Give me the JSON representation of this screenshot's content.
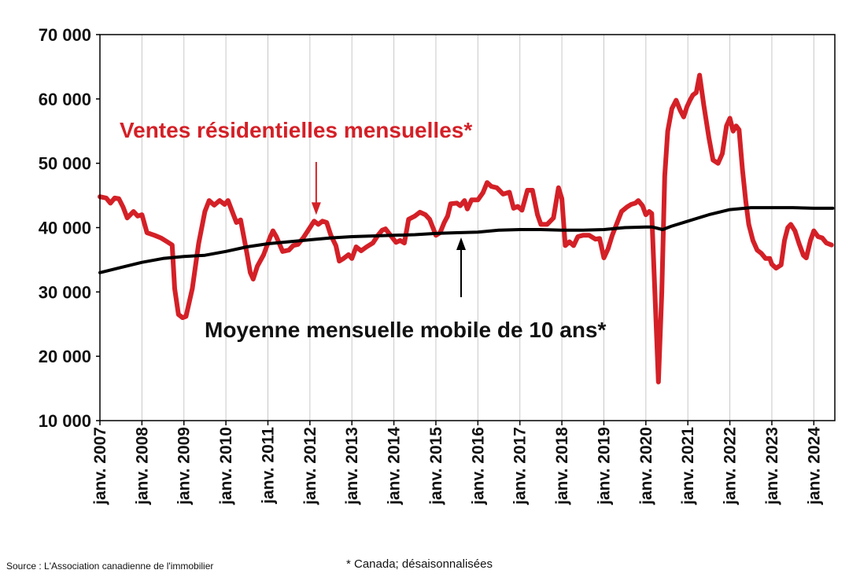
{
  "source": "Source : L'Association canadienne de l'immobilier",
  "footnote": "* Canada; désaisonnalisées",
  "annotations": [
    {
      "id": "red",
      "text": "Ventes résidentielles mensuelles*",
      "color": "#d42027",
      "at": [
        2012.15,
        41000
      ]
    },
    {
      "id": "black",
      "text": "Moyenne mensuelle mobile de 10 ans*",
      "color": "#000000",
      "at": [
        2015.6,
        39200
      ]
    }
  ],
  "chart_data": {
    "type": "line",
    "title": "",
    "xlabel": "",
    "ylabel": "",
    "xlim": [
      2007.0,
      2024.5
    ],
    "ylim": [
      10000,
      70000
    ],
    "grid": "vertical",
    "yticks": [
      10000,
      20000,
      30000,
      40000,
      50000,
      60000,
      70000
    ],
    "ytick_labels": [
      "10 000",
      "20 000",
      "30 000",
      "40 000",
      "50 000",
      "60 000",
      "70 000"
    ],
    "xticks": [
      2007,
      2008,
      2009,
      2010,
      2011,
      2012,
      2013,
      2014,
      2015,
      2016,
      2017,
      2018,
      2019,
      2020,
      2021,
      2022,
      2023,
      2024
    ],
    "xtick_labels": [
      "janv. 2007",
      "janv. 2008",
      "janv. 2009",
      "janv. 2010",
      "janv. 2011",
      "janv. 2012",
      "janv. 2013",
      "janv. 2014",
      "janv. 2015",
      "janv. 2016",
      "janv. 2017",
      "janv. 2018",
      "janv. 2019",
      "janv. 2020",
      "janv. 2021",
      "janv. 2022",
      "janv. 2023",
      "janv. 2024"
    ],
    "series": [
      {
        "name": "Ventes résidentielles mensuelles*",
        "color": "#d42027",
        "points": [
          [
            2007.0,
            44800
          ],
          [
            2007.15,
            44600
          ],
          [
            2007.25,
            43800
          ],
          [
            2007.35,
            44600
          ],
          [
            2007.45,
            44500
          ],
          [
            2007.55,
            43200
          ],
          [
            2007.65,
            41500
          ],
          [
            2007.8,
            42500
          ],
          [
            2007.9,
            41800
          ],
          [
            2008.0,
            42000
          ],
          [
            2008.12,
            39200
          ],
          [
            2008.3,
            38800
          ],
          [
            2008.45,
            38400
          ],
          [
            2008.6,
            37800
          ],
          [
            2008.72,
            37300
          ],
          [
            2008.78,
            30500
          ],
          [
            2008.87,
            26500
          ],
          [
            2008.97,
            26000
          ],
          [
            2009.05,
            26200
          ],
          [
            2009.2,
            30500
          ],
          [
            2009.35,
            37500
          ],
          [
            2009.5,
            42500
          ],
          [
            2009.6,
            44200
          ],
          [
            2009.72,
            43500
          ],
          [
            2009.85,
            44200
          ],
          [
            2009.97,
            43600
          ],
          [
            2010.05,
            44200
          ],
          [
            2010.15,
            42500
          ],
          [
            2010.25,
            40800
          ],
          [
            2010.35,
            41200
          ],
          [
            2010.5,
            36000
          ],
          [
            2010.58,
            33000
          ],
          [
            2010.65,
            32000
          ],
          [
            2010.75,
            34000
          ],
          [
            2010.9,
            35800
          ],
          [
            2011.05,
            38500
          ],
          [
            2011.12,
            39500
          ],
          [
            2011.2,
            38600
          ],
          [
            2011.35,
            36300
          ],
          [
            2011.5,
            36500
          ],
          [
            2011.6,
            37200
          ],
          [
            2011.72,
            37400
          ],
          [
            2011.85,
            38500
          ],
          [
            2012.0,
            40000
          ],
          [
            2012.1,
            41000
          ],
          [
            2012.2,
            40500
          ],
          [
            2012.3,
            41000
          ],
          [
            2012.4,
            40800
          ],
          [
            2012.5,
            38800
          ],
          [
            2012.62,
            37200
          ],
          [
            2012.7,
            34800
          ],
          [
            2012.8,
            35200
          ],
          [
            2012.92,
            35800
          ],
          [
            2013.0,
            35200
          ],
          [
            2013.1,
            37000
          ],
          [
            2013.22,
            36400
          ],
          [
            2013.35,
            37000
          ],
          [
            2013.5,
            37600
          ],
          [
            2013.62,
            38800
          ],
          [
            2013.72,
            39600
          ],
          [
            2013.8,
            39800
          ],
          [
            2013.92,
            38800
          ],
          [
            2014.05,
            37700
          ],
          [
            2014.15,
            38000
          ],
          [
            2014.25,
            37600
          ],
          [
            2014.35,
            41300
          ],
          [
            2014.5,
            41800
          ],
          [
            2014.62,
            42400
          ],
          [
            2014.75,
            42000
          ],
          [
            2014.85,
            41300
          ],
          [
            2015.0,
            38800
          ],
          [
            2015.1,
            39200
          ],
          [
            2015.2,
            40800
          ],
          [
            2015.28,
            41800
          ],
          [
            2015.35,
            43700
          ],
          [
            2015.5,
            43800
          ],
          [
            2015.58,
            43400
          ],
          [
            2015.68,
            44200
          ],
          [
            2015.75,
            42900
          ],
          [
            2015.85,
            44300
          ],
          [
            2016.0,
            44300
          ],
          [
            2016.12,
            45400
          ],
          [
            2016.22,
            47000
          ],
          [
            2016.32,
            46400
          ],
          [
            2016.45,
            46200
          ],
          [
            2016.6,
            45200
          ],
          [
            2016.75,
            45500
          ],
          [
            2016.85,
            43000
          ],
          [
            2016.95,
            43300
          ],
          [
            2017.05,
            42700
          ],
          [
            2017.18,
            45800
          ],
          [
            2017.3,
            45800
          ],
          [
            2017.42,
            42000
          ],
          [
            2017.5,
            40500
          ],
          [
            2017.65,
            40500
          ],
          [
            2017.8,
            41500
          ],
          [
            2017.92,
            46200
          ],
          [
            2018.0,
            44500
          ],
          [
            2018.08,
            37200
          ],
          [
            2018.18,
            37800
          ],
          [
            2018.28,
            37200
          ],
          [
            2018.38,
            38600
          ],
          [
            2018.5,
            38800
          ],
          [
            2018.65,
            38800
          ],
          [
            2018.8,
            38200
          ],
          [
            2018.9,
            38300
          ],
          [
            2019.0,
            35300
          ],
          [
            2019.1,
            36700
          ],
          [
            2019.2,
            38800
          ],
          [
            2019.3,
            40500
          ],
          [
            2019.42,
            42500
          ],
          [
            2019.55,
            43200
          ],
          [
            2019.65,
            43600
          ],
          [
            2019.75,
            43800
          ],
          [
            2019.82,
            44200
          ],
          [
            2019.92,
            43400
          ],
          [
            2020.0,
            42000
          ],
          [
            2020.08,
            42500
          ],
          [
            2020.14,
            42200
          ],
          [
            2020.22,
            29000
          ],
          [
            2020.3,
            16000
          ],
          [
            2020.38,
            30000
          ],
          [
            2020.45,
            48000
          ],
          [
            2020.52,
            55000
          ],
          [
            2020.62,
            58500
          ],
          [
            2020.72,
            59800
          ],
          [
            2020.82,
            58200
          ],
          [
            2020.9,
            57200
          ],
          [
            2020.98,
            58800
          ],
          [
            2021.05,
            59800
          ],
          [
            2021.12,
            60600
          ],
          [
            2021.2,
            61000
          ],
          [
            2021.28,
            63700
          ],
          [
            2021.38,
            59000
          ],
          [
            2021.5,
            54000
          ],
          [
            2021.6,
            50500
          ],
          [
            2021.72,
            50000
          ],
          [
            2021.82,
            51500
          ],
          [
            2021.92,
            55800
          ],
          [
            2022.0,
            57000
          ],
          [
            2022.08,
            55000
          ],
          [
            2022.15,
            55800
          ],
          [
            2022.22,
            55200
          ],
          [
            2022.3,
            49000
          ],
          [
            2022.38,
            44000
          ],
          [
            2022.45,
            40500
          ],
          [
            2022.55,
            38000
          ],
          [
            2022.65,
            36500
          ],
          [
            2022.75,
            36000
          ],
          [
            2022.85,
            35200
          ],
          [
            2022.95,
            35200
          ],
          [
            2023.0,
            34300
          ],
          [
            2023.1,
            33700
          ],
          [
            2023.22,
            34200
          ],
          [
            2023.3,
            38000
          ],
          [
            2023.38,
            40000
          ],
          [
            2023.45,
            40500
          ],
          [
            2023.55,
            39500
          ],
          [
            2023.65,
            37500
          ],
          [
            2023.75,
            35700
          ],
          [
            2023.82,
            35300
          ],
          [
            2023.92,
            38000
          ],
          [
            2024.0,
            39500
          ],
          [
            2024.1,
            38600
          ],
          [
            2024.2,
            38400
          ],
          [
            2024.3,
            37600
          ],
          [
            2024.42,
            37300
          ]
        ]
      },
      {
        "name": "Moyenne mensuelle mobile de 10 ans*",
        "color": "#000000",
        "points": [
          [
            2007.0,
            33000
          ],
          [
            2007.5,
            33800
          ],
          [
            2008.0,
            34600
          ],
          [
            2008.5,
            35200
          ],
          [
            2009.0,
            35500
          ],
          [
            2009.5,
            35700
          ],
          [
            2010.0,
            36300
          ],
          [
            2010.5,
            37000
          ],
          [
            2011.0,
            37500
          ],
          [
            2011.5,
            37800
          ],
          [
            2012.0,
            38100
          ],
          [
            2012.5,
            38400
          ],
          [
            2013.0,
            38600
          ],
          [
            2013.5,
            38700
          ],
          [
            2014.0,
            38800
          ],
          [
            2014.5,
            38900
          ],
          [
            2015.0,
            39100
          ],
          [
            2015.5,
            39200
          ],
          [
            2016.0,
            39300
          ],
          [
            2016.5,
            39600
          ],
          [
            2017.0,
            39700
          ],
          [
            2017.5,
            39700
          ],
          [
            2018.0,
            39600
          ],
          [
            2018.5,
            39600
          ],
          [
            2019.0,
            39700
          ],
          [
            2019.5,
            40000
          ],
          [
            2020.0,
            40100
          ],
          [
            2020.15,
            40100
          ],
          [
            2020.4,
            39700
          ],
          [
            2020.6,
            40200
          ],
          [
            2021.0,
            41000
          ],
          [
            2021.5,
            42000
          ],
          [
            2022.0,
            42800
          ],
          [
            2022.5,
            43100
          ],
          [
            2023.0,
            43100
          ],
          [
            2023.5,
            43100
          ],
          [
            2024.0,
            43000
          ],
          [
            2024.45,
            43000
          ]
        ]
      }
    ]
  }
}
